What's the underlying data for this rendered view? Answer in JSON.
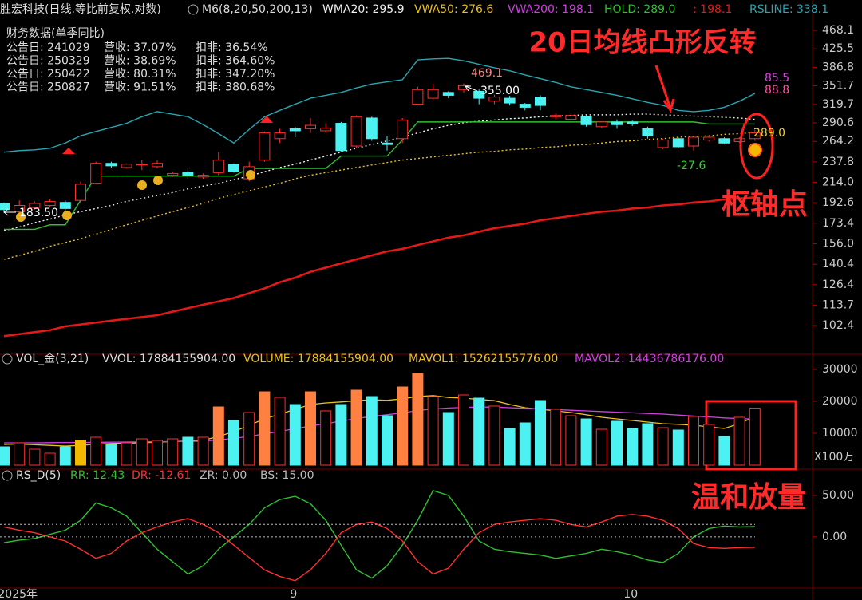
{
  "header": {
    "title": "胜宏科技(日线.等比前复权.对数)",
    "indicator": "M6(8,20,50,200,13)"
  },
  "finance": {
    "title": "财务数据(单季同比)",
    "rows": [
      [
        "公告日: 241029",
        "营收: 37.07%",
        "扣非: 36.54%"
      ],
      [
        "公告日: 250329",
        "营收: 38.69%",
        "扣非: 364.60%"
      ],
      [
        "公告日: 250422",
        "营收: 80.31%",
        "扣非: 347.20%"
      ],
      [
        "公告日: 250827",
        "营收: 91.51%",
        "扣非: 380.68%"
      ]
    ]
  },
  "callouts": [
    "20日均线凸形反转",
    "枢轴点",
    "温和放量"
  ],
  "chart_data": [
    {
      "type": "candlestick",
      "log_scale": true,
      "up_color": "#ff3030",
      "down_color": "#4cf2f2",
      "ylim": [
        89.8,
        508.1
      ],
      "yticks": [
        468.1,
        425.5,
        386.8,
        351.7,
        319.7,
        290.6,
        264.2,
        237.8,
        {
          "value": 214,
          "label": "214.0"
        },
        192.6,
        173.4,
        {
          "value": 156,
          "label": "156.0"
        },
        140.4,
        126.4,
        113.7,
        102.4
      ],
      "open": [
        192,
        184,
        188,
        190,
        193,
        195,
        213,
        236,
        231,
        234,
        232,
        222,
        225,
        220,
        225,
        235,
        218,
        240,
        268,
        282,
        282,
        279,
        290,
        258,
        298,
        262,
        268,
        320,
        330,
        340,
        345,
        342,
        325,
        330,
        320,
        332,
        300,
        296,
        300,
        285,
        292,
        292,
        282,
        256,
        268,
        258,
        266,
        268,
        264,
        268
      ],
      "high": [
        193,
        195,
        194,
        196,
        195,
        215,
        238,
        238,
        236,
        240,
        240,
        226,
        230,
        224,
        250,
        236,
        238,
        278,
        282,
        285,
        298,
        290,
        292,
        302,
        300,
        272,
        298,
        350,
        355,
        342,
        356,
        345,
        336,
        334,
        322,
        335,
        305,
        306,
        302,
        293,
        296,
        294,
        285,
        268,
        270,
        272,
        272,
        270,
        270,
        280
      ],
      "low": [
        183.5,
        181,
        186,
        188,
        184,
        193,
        212,
        231,
        230,
        228,
        230,
        220,
        218,
        218,
        222,
        225,
        215,
        238,
        262,
        270,
        276,
        276,
        250,
        256,
        265,
        252,
        262,
        318,
        328,
        330,
        340,
        320,
        320,
        318,
        310,
        310,
        296,
        292,
        285,
        283,
        282,
        286,
        268,
        254,
        255,
        252,
        264,
        260,
        262,
        265
      ],
      "close": [
        186,
        190,
        192,
        194,
        187,
        212,
        236,
        233,
        235,
        235,
        236,
        224,
        222,
        222,
        240,
        226,
        232,
        276,
        276,
        279,
        287,
        283,
        252,
        300,
        268,
        260,
        295,
        345,
        345,
        335,
        352,
        330,
        332,
        322,
        315,
        318,
        302,
        302,
        288,
        292,
        288,
        289,
        272,
        266,
        257,
        270,
        270,
        262,
        268,
        276
      ],
      "lines": [
        {
          "name": "WMA20: 295.9",
          "color": "#f0f0f0",
          "dash": true,
          "values": [
            167,
            170,
            174,
            177,
            181,
            184,
            187,
            190,
            194,
            197,
            200,
            203,
            207,
            210,
            213,
            217,
            221,
            226,
            231,
            235,
            240,
            245,
            250,
            255,
            260,
            265,
            270,
            276,
            282,
            287,
            291,
            293,
            295,
            297,
            298,
            300,
            301,
            302,
            303,
            303,
            303,
            304,
            304,
            303,
            302,
            301,
            300,
            299,
            298,
            295.9
          ]
        },
        {
          "name": "VWA50: 276.6",
          "color": "#e8c020",
          "dash": true,
          "values": [
            144,
            147,
            150,
            154,
            157,
            160,
            164,
            168,
            172,
            176,
            180,
            184,
            188,
            192,
            197,
            201,
            205,
            209,
            213,
            218,
            222,
            225,
            228,
            231,
            234,
            237,
            240,
            242,
            244,
            246,
            248,
            250,
            251,
            253,
            254,
            256,
            257,
            259,
            260,
            262,
            264,
            265,
            267,
            268,
            270,
            271,
            272,
            274,
            275,
            276.6
          ]
        },
        {
          "name": "VWA200: 198.1",
          "color": "#d040e0",
          "dash": false,
          "values": null
        },
        {
          "name": "HOLD: 289.0",
          "color": "#30c030",
          "dash": false,
          "values": [
            168,
            168,
            168,
            172,
            172,
            195,
            221,
            221,
            221,
            221,
            221,
            221,
            221,
            221,
            221,
            221,
            230,
            230,
            230,
            230,
            230,
            230,
            245,
            245,
            245,
            245,
            266,
            292,
            292,
            292,
            292,
            292,
            292,
            292,
            292,
            292,
            292,
            292,
            292,
            292,
            292,
            292,
            292,
            292,
            292,
            292,
            289,
            289,
            289,
            289
          ]
        },
        {
          "name": ": 198.1",
          "color": "#e81818",
          "dash": false,
          "values": [
            97,
            98,
            99,
            100,
            102,
            103,
            104,
            105,
            106,
            107,
            108,
            110,
            112,
            114,
            116,
            118,
            121,
            124,
            128,
            131,
            135,
            138,
            141,
            144,
            147,
            150,
            152,
            155,
            158,
            161,
            163,
            166,
            169,
            171,
            173,
            176,
            178,
            180,
            182,
            184,
            185,
            187,
            188,
            190,
            191,
            193,
            194,
            196,
            197,
            198.1
          ]
        },
        {
          "name": "RSLINE: 338.1",
          "color": "#2aa5b0",
          "dash": false,
          "values": [
            250,
            252,
            253,
            255,
            262,
            272,
            278,
            284,
            290,
            300,
            308,
            304,
            300,
            288,
            275,
            262,
            281,
            300,
            310,
            320,
            330,
            335,
            340,
            348,
            355,
            359,
            363,
            402,
            404,
            405,
            400,
            393,
            386,
            380,
            372,
            365,
            358,
            350,
            345,
            340,
            335,
            329,
            323,
            318,
            310,
            308,
            310,
            315,
            325,
            338.1
          ]
        }
      ],
      "labels": [
        {
          "text": "469.1",
          "color": "#ff8080"
        },
        {
          "text": "355.00",
          "color": "#ffffff"
        },
        {
          "text": "183.50",
          "color": "#ffffff"
        },
        {
          "text": "-27.6",
          "color": "#30d030"
        },
        {
          "text": "85.5",
          "color": "#e040e0"
        },
        {
          "text": "88.8",
          "color": "#ff50a0"
        },
        {
          "text": "289.0",
          "color": "#f0d020"
        }
      ]
    },
    {
      "type": "bar",
      "unit": "X100万",
      "ylim": [
        0,
        32000
      ],
      "yticks": [
        10000,
        20000,
        30000
      ],
      "legend": [
        {
          "text": "VOL_金(3,21)",
          "color": "#dddddd"
        },
        {
          "text": "VVOL: 17884155904.00",
          "color": "#dddddd"
        },
        {
          "text": "VOLUME: 17884155904.00",
          "color": "#e8c020"
        },
        {
          "text": "MAVOL1: 15262155776.00",
          "color": "#e8c020"
        },
        {
          "text": "MAVOL2: 14436786176.00",
          "color": "#d040e0"
        }
      ],
      "values": [
        5750,
        7000,
        5000,
        3750,
        5750,
        7750,
        8750,
        6500,
        7000,
        8250,
        7750,
        8250,
        8750,
        8750,
        18250,
        14000,
        16500,
        23000,
        21250,
        19000,
        23000,
        17000,
        19000,
        23500,
        21500,
        15500,
        24500,
        28750,
        21500,
        16500,
        22000,
        21000,
        18500,
        11500,
        13250,
        20250,
        17500,
        15500,
        14500,
        11250,
        13750,
        11500,
        13000,
        11750,
        11000,
        15250,
        12750,
        9000,
        15000,
        17884
      ],
      "colors": [
        "#4cf2f2",
        "#ff3030",
        "#ff3030",
        "#ff3030",
        "#4cf2f2",
        "#f5b800",
        "#ff3030",
        "#4cf2f2",
        "#ff3030",
        "#ff3030",
        "#ff3030",
        "#ff3030",
        "#4cf2f2",
        "#ff3030",
        "#ff8040",
        "#4cf2f2",
        "#ff3030",
        "#ff8040",
        "#ff3030",
        "#4cf2f2",
        "#ff8040",
        "#ff3030",
        "#4cf2f2",
        "#ff8040",
        "#4cf2f2",
        "#4cf2f2",
        "#ff8040",
        "#ff8040",
        "#ff3030",
        "#4cf2f2",
        "#ff3030",
        "#4cf2f2",
        "#ff3030",
        "#4cf2f2",
        "#4cf2f2",
        "#4cf2f2",
        "#ff3030",
        "#ff3030",
        "#4cf2f2",
        "#ff3030",
        "#4cf2f2",
        "#4cf2f2",
        "#4cf2f2",
        "#ff3030",
        "#4cf2f2",
        "#ff3030",
        "#ff3030",
        "#4cf2f2",
        "#ff3030",
        "#ff3030"
      ],
      "hollow_color": "#ff3030",
      "lines": [
        {
          "color": "#e8c020",
          "values": [
            6500,
            6600,
            6400,
            6200,
            6000,
            6200,
            6600,
            6800,
            6900,
            7000,
            7200,
            7400,
            7600,
            7800,
            9000,
            10500,
            12500,
            14500,
            16000,
            17500,
            19000,
            19500,
            19800,
            20200,
            20500,
            20300,
            20800,
            21500,
            21800,
            21200,
            21000,
            20600,
            20200,
            19000,
            18000,
            17500,
            17000,
            16500,
            15800,
            15000,
            14500,
            14000,
            13500,
            13000,
            12800,
            12500,
            12000,
            11500,
            13000,
            15262
          ]
        },
        {
          "color": "#d040e0",
          "values": [
            7000,
            7000,
            7000,
            7050,
            7100,
            7100,
            7150,
            7200,
            7250,
            7300,
            7350,
            7400,
            7450,
            7500,
            7900,
            8400,
            9000,
            9800,
            10600,
            11400,
            12300,
            13000,
            13800,
            14600,
            15300,
            15800,
            16400,
            17100,
            17600,
            17900,
            18100,
            18200,
            18200,
            18000,
            17800,
            17600,
            17400,
            17200,
            17000,
            16800,
            16600,
            16400,
            16200,
            16000,
            15700,
            15400,
            15100,
            14800,
            14600,
            14437
          ]
        }
      ]
    },
    {
      "type": "line",
      "ylim": [
        -60,
        78
      ],
      "yticks": [
        {
          "value": 50,
          "label": "50.00"
        },
        {
          "value": 0,
          "label": "0.00"
        }
      ],
      "categories": [
        null,
        "2025年",
        null,
        null,
        null,
        null,
        null,
        null,
        null,
        null,
        null,
        null,
        null,
        null,
        null,
        null,
        null,
        null,
        null,
        "9",
        null,
        null,
        null,
        null,
        null,
        null,
        null,
        null,
        null,
        null,
        null,
        null,
        null,
        null,
        null,
        null,
        null,
        null,
        null,
        null,
        null,
        "10",
        null,
        null,
        null,
        null,
        null,
        null,
        null,
        null
      ],
      "legend": [
        {
          "text": "RS_D(5)",
          "color": "#dddddd"
        },
        {
          "text": "RR: 12.43",
          "color": "#30c030"
        },
        {
          "text": "DR: -12.61",
          "color": "#ff3030"
        },
        {
          "text": "ZR: 0.00",
          "color": "#bbbbbb"
        },
        {
          "text": "BS: 15.00",
          "color": "#bbbbbb"
        }
      ],
      "series": [
        {
          "color": "#30c030",
          "values": [
            -7,
            -4,
            -2,
            3,
            8,
            20,
            41,
            35,
            25,
            5,
            -15,
            -30,
            -45,
            -35,
            -15,
            0,
            15,
            35,
            45,
            49,
            40,
            20,
            -10,
            -40,
            -50,
            -35,
            -10,
            20,
            56,
            50,
            25,
            -5,
            -15,
            -18,
            -20,
            -22,
            -26,
            -23,
            -20,
            -15,
            -18,
            -22,
            -28,
            -31,
            -20,
            0,
            10,
            13,
            12,
            12.43
          ]
        },
        {
          "color": "#ff3030",
          "values": [
            12,
            8,
            5,
            0,
            -5,
            -15,
            -26,
            -20,
            -5,
            5,
            12,
            18,
            22,
            15,
            5,
            -10,
            -25,
            -40,
            -48,
            -53,
            -40,
            -20,
            5,
            15,
            18,
            10,
            -5,
            -30,
            -45,
            -38,
            -15,
            5,
            15,
            18,
            20,
            22,
            20,
            15,
            12,
            18,
            25,
            27,
            25,
            20,
            10,
            -8,
            -13,
            -14,
            -13,
            -12.61
          ]
        }
      ],
      "levels": [
        {
          "value": 0,
          "color": "#bbbbbb"
        },
        {
          "value": 15,
          "color": "#bbbbbb"
        }
      ]
    }
  ]
}
